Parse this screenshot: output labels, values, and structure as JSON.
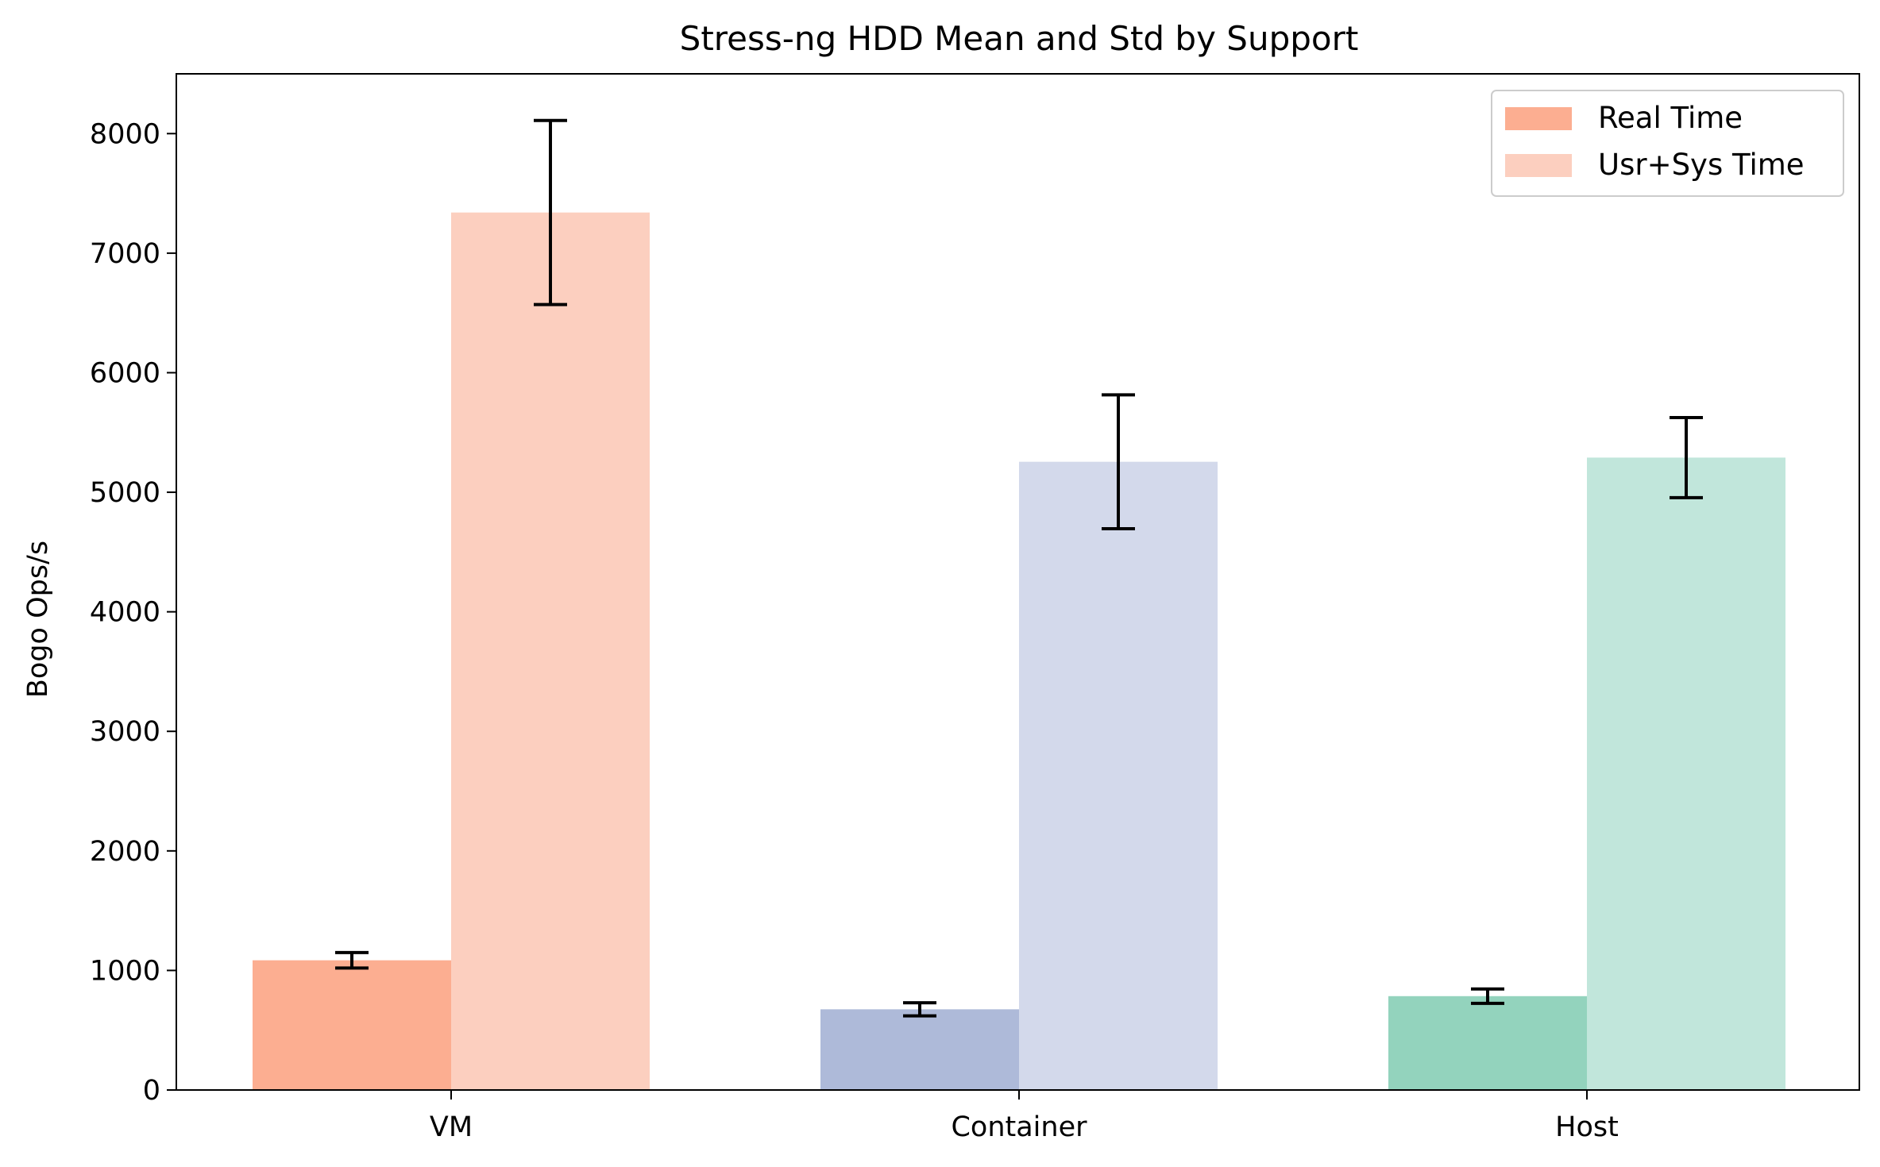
{
  "chart_data": {
    "type": "bar",
    "title": "Stress-ng HDD Mean and Std by Support",
    "xlabel": "",
    "ylabel": "Bogo Ops/s",
    "categories": [
      "VM",
      "Container",
      "Host"
    ],
    "yticks": [
      "0",
      "1000",
      "2000",
      "3000",
      "4000",
      "5000",
      "6000",
      "7000",
      "8000"
    ],
    "ylim": [
      0,
      8500
    ],
    "grid": false,
    "legend_position": "top-right",
    "series": [
      {
        "name": "Real Time",
        "values": [
          1085,
          675,
          785
        ],
        "std": [
          65,
          55,
          60
        ],
        "colors": [
          "#fcae91",
          "#aebad9",
          "#93d3bd"
        ]
      },
      {
        "name": "Usr+Sys Time",
        "values": [
          7340,
          5255,
          5290
        ],
        "std": [
          770,
          560,
          335
        ],
        "colors": [
          "#fccfbf",
          "#d3d9eb",
          "#c1e6db"
        ]
      }
    ],
    "legend_colors": [
      "#fcae91",
      "#fccfbf"
    ]
  }
}
